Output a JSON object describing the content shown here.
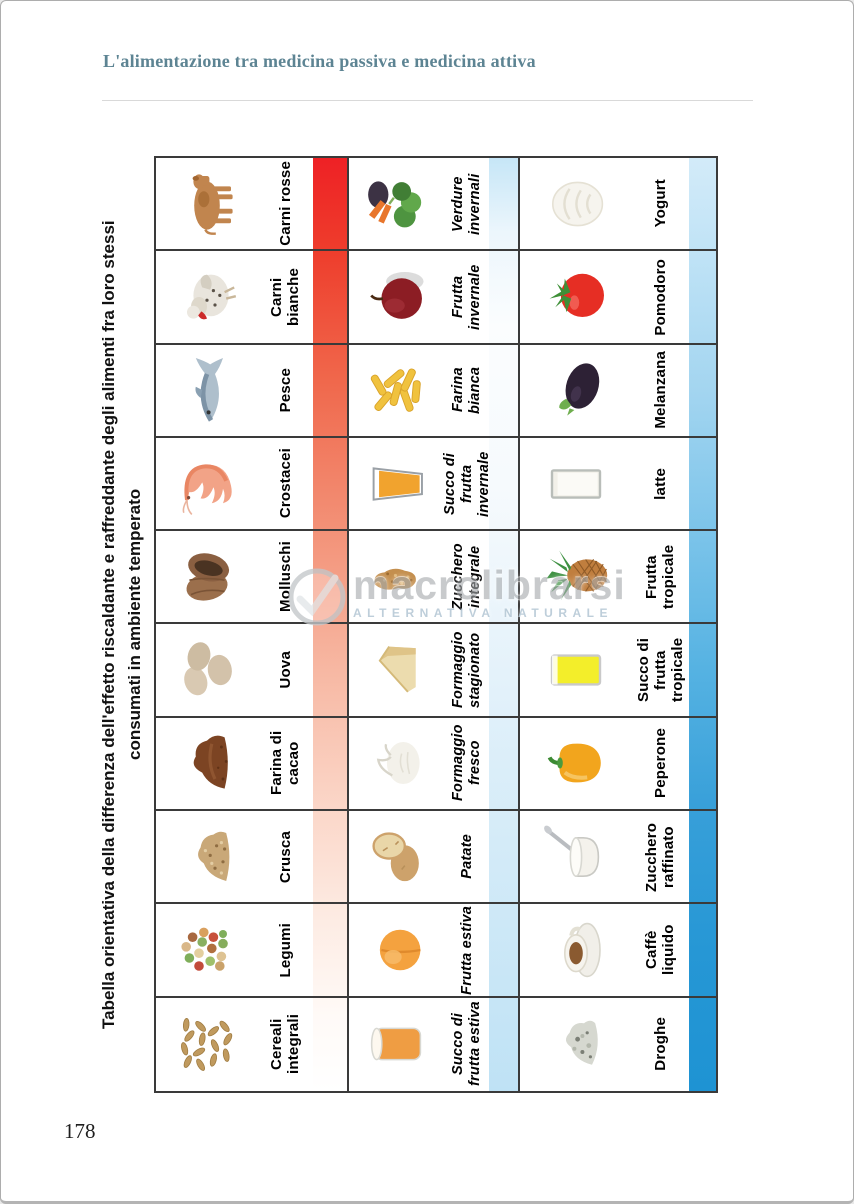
{
  "page": {
    "header_title": "L'alimentazione tra medicina passiva e medicina attiva",
    "page_number": "178"
  },
  "table": {
    "title_line1": "Tabella orientativa della differenza dell'effetto riscaldante e raffreddante degli alimenti fra loro stessi",
    "title_line2": "consumati in ambiente temperato",
    "groups": [
      {
        "id": "warming",
        "meaning": "effetto riscaldante",
        "gradient_top": "#ee2125",
        "gradient_bottom": "#ffffff"
      },
      {
        "id": "neutral",
        "meaning": "effetto intermedio",
        "gradient_top": "#c6e6f7",
        "gradient_bottom": "#bfe2f5"
      },
      {
        "id": "cooling",
        "meaning": "effetto raffreddante",
        "gradient_top": "#d3ebf9",
        "gradient_bottom": "#1e93d3"
      }
    ],
    "rows": [
      {
        "warming": {
          "label": "Carni rosse",
          "icon": "cow"
        },
        "neutral": {
          "label": "Verdure invernali",
          "icon": "winter-vegetables"
        },
        "cooling": {
          "label": "Yogurt",
          "icon": "yogurt"
        }
      },
      {
        "warming": {
          "label": "Carni bianche",
          "icon": "chicken"
        },
        "neutral": {
          "label": "Frutta invernale",
          "icon": "red-apple"
        },
        "cooling": {
          "label": "Pomodoro",
          "icon": "tomato"
        }
      },
      {
        "warming": {
          "label": "Pesce",
          "icon": "fish"
        },
        "neutral": {
          "label": "Farina bianca",
          "icon": "pasta"
        },
        "cooling": {
          "label": "Melanzana",
          "icon": "eggplant"
        }
      },
      {
        "warming": {
          "label": "Crostacei",
          "icon": "shrimp"
        },
        "neutral": {
          "label": "Succo di frutta invernale",
          "icon": "juice-winter"
        },
        "cooling": {
          "label": "latte",
          "icon": "milk-glass"
        }
      },
      {
        "warming": {
          "label": "Molluschi",
          "icon": "clams"
        },
        "neutral": {
          "label": "Zucchero integrale",
          "icon": "brown-sugar"
        },
        "cooling": {
          "label": "Frutta tropicale",
          "icon": "pineapple"
        }
      },
      {
        "warming": {
          "label": "Uova",
          "icon": "eggs"
        },
        "neutral": {
          "label": "Formaggio stagionato",
          "icon": "cheese-wedge"
        },
        "cooling": {
          "label": "Succo di frutta tropicale",
          "icon": "juice-tropical"
        }
      },
      {
        "warming": {
          "label": "Farina di cacao",
          "icon": "cocoa-powder"
        },
        "neutral": {
          "label": "Formaggio fresco",
          "icon": "fresh-cheese"
        },
        "cooling": {
          "label": "Peperone",
          "icon": "bell-pepper"
        }
      },
      {
        "warming": {
          "label": "Crusca",
          "icon": "bran"
        },
        "neutral": {
          "label": "Patate",
          "icon": "potatoes"
        },
        "cooling": {
          "label": "Zucchero raffinato",
          "icon": "sugar-bowl"
        }
      },
      {
        "warming": {
          "label": "Legumi",
          "icon": "legumes"
        },
        "neutral": {
          "label": "Frutta estiva",
          "icon": "apricot"
        },
        "cooling": {
          "label": "Caffè liquido",
          "icon": "coffee-cup"
        }
      },
      {
        "warming": {
          "label": "Cereali integrali",
          "icon": "whole-grains"
        },
        "neutral": {
          "label": "Succo di frutta estiva",
          "icon": "juice-summer"
        },
        "cooling": {
          "label": "Droghe",
          "icon": "spice-powder"
        }
      }
    ]
  },
  "watermark": {
    "logo": "macrolibrarsi-check-logo",
    "title": "macrolibrarsi",
    "subtitle": "ALTERNATIVA NATURALE"
  }
}
